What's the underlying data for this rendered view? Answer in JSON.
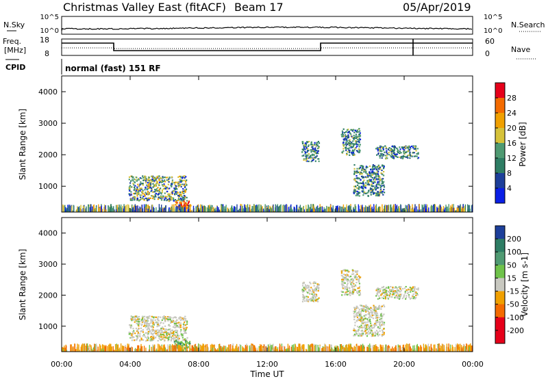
{
  "header": {
    "title": "Christmas Valley East (fitACF)",
    "beam": "Beam 17",
    "date": "05/Apr/2019"
  },
  "sky_panel": {
    "left_label": "N.Sky",
    "right_label": "N.Search",
    "left_ticks": [
      "10^5",
      "10^0"
    ],
    "right_ticks": [
      "10^5",
      "10^0"
    ]
  },
  "freq_panel": {
    "left_label_1": "Freq.",
    "left_label_2": "[MHz]",
    "right_label": "Nave",
    "left_ticks": [
      "18",
      "8"
    ],
    "right_ticks": [
      "60",
      "0"
    ]
  },
  "cpid": {
    "label": "CPID",
    "text": "normal (fast) 151 RF"
  },
  "chart_data": [
    {
      "type": "heatmap",
      "name": "power",
      "ylabel": "Slant Range [km]",
      "y_ticks": [
        "4000",
        "3000",
        "2000",
        "1000"
      ],
      "y_tick_values": [
        4000,
        3000,
        2000,
        1000
      ],
      "ylim": [
        180,
        4500
      ],
      "xlim": [
        0,
        24
      ],
      "colorbar": {
        "label": "Power [dB]",
        "ticks": [
          "28",
          "24",
          "20",
          "16",
          "12",
          "8",
          "4"
        ],
        "colors": [
          "#e6001a",
          "#f46b00",
          "#f0a000",
          "#d6c23a",
          "#4f9a72",
          "#2e7d64",
          "#1d3f9a",
          "#0a1fe6"
        ]
      },
      "echo_regions": [
        {
          "t_start": 3.9,
          "t_end": 7.3,
          "range_min": 550,
          "range_max": 1350,
          "level": "high"
        },
        {
          "t_start": 6.6,
          "t_end": 7.5,
          "range_min": 300,
          "range_max": 550,
          "level": "very_high"
        },
        {
          "t_start": 14.0,
          "t_end": 15.0,
          "range_min": 1800,
          "range_max": 2450,
          "level": "medium"
        },
        {
          "t_start": 16.3,
          "t_end": 17.4,
          "range_min": 2000,
          "range_max": 2850,
          "level": "medium"
        },
        {
          "t_start": 17.0,
          "t_end": 18.8,
          "range_min": 700,
          "range_max": 1700,
          "level": "medium"
        },
        {
          "t_start": 18.3,
          "t_end": 20.8,
          "range_min": 1900,
          "range_max": 2300,
          "level": "medium"
        },
        {
          "t_start": 0.0,
          "t_end": 24.0,
          "range_min": 180,
          "range_max": 380,
          "level": "noise"
        }
      ]
    },
    {
      "type": "heatmap",
      "name": "velocity",
      "ylabel": "Slant Range [km]",
      "xlabel": "Time UT",
      "x_ticks": [
        "00:00",
        "04:00",
        "08:00",
        "12:00",
        "16:00",
        "20:00",
        "00:00"
      ],
      "x_tick_values": [
        0,
        4,
        8,
        12,
        16,
        20,
        24
      ],
      "y_ticks": [
        "4000",
        "3000",
        "2000",
        "1000"
      ],
      "y_tick_values": [
        4000,
        3000,
        2000,
        1000
      ],
      "ylim": [
        180,
        4500
      ],
      "xlim": [
        0,
        24
      ],
      "colorbar": {
        "label": "Velocity [m s-1]",
        "ticks": [
          "200",
          "100",
          "50",
          "15",
          "-15",
          "-50",
          "-100",
          "-200"
        ],
        "colors": [
          "#1d3f9a",
          "#2e7d64",
          "#4f9a72",
          "#6fc24a",
          "#c8c8c0",
          "#f0a000",
          "#f46b00",
          "#e6001a",
          "#e6001a"
        ]
      },
      "echo_regions": [
        {
          "t_start": 3.9,
          "t_end": 7.3,
          "range_min": 550,
          "range_max": 1350,
          "level": "ground"
        },
        {
          "t_start": 6.5,
          "t_end": 7.5,
          "range_min": 300,
          "range_max": 550,
          "level": "positive"
        },
        {
          "t_start": 14.0,
          "t_end": 15.0,
          "range_min": 1800,
          "range_max": 2450,
          "level": "ground"
        },
        {
          "t_start": 16.3,
          "t_end": 17.4,
          "range_min": 2000,
          "range_max": 2850,
          "level": "ground"
        },
        {
          "t_start": 17.0,
          "t_end": 18.8,
          "range_min": 700,
          "range_max": 1700,
          "level": "ground"
        },
        {
          "t_start": 18.3,
          "t_end": 20.8,
          "range_min": 1900,
          "range_max": 2300,
          "level": "ground"
        },
        {
          "t_start": 0.0,
          "t_end": 24.0,
          "range_min": 180,
          "range_max": 420,
          "level": "noise"
        }
      ]
    }
  ]
}
